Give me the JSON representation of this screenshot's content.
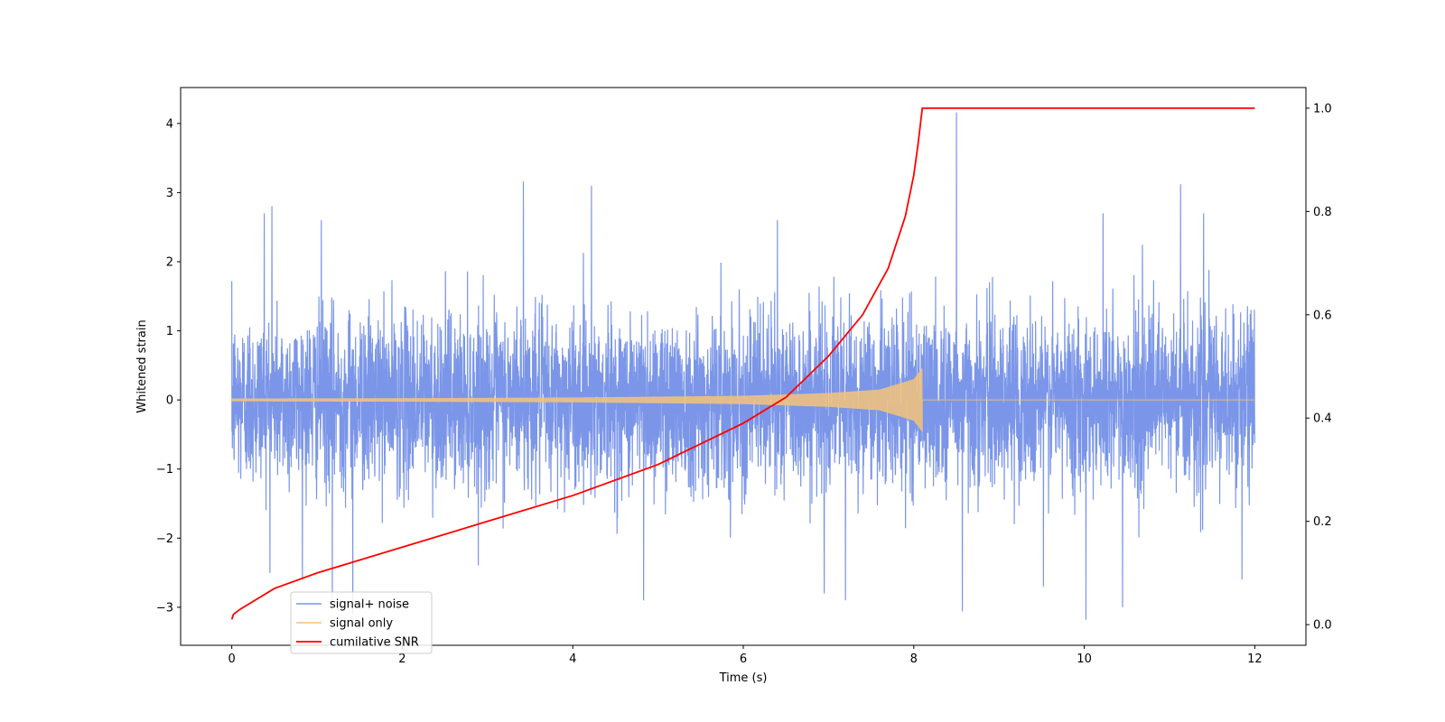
{
  "chart_data": {
    "type": "line",
    "title": "",
    "xlabel": "Time (s)",
    "ylabel": "Whitened strain",
    "y2label": "",
    "xlim": [
      -0.6,
      12.6
    ],
    "ylim": [
      -3.55,
      4.52
    ],
    "y2lim": [
      -0.04,
      1.04
    ],
    "x_ticks": [
      0,
      2,
      4,
      6,
      8,
      10,
      12
    ],
    "y_ticks": [
      -3,
      -2,
      -1,
      0,
      1,
      2,
      3,
      4
    ],
    "y2_ticks": [
      0.0,
      0.2,
      0.4,
      0.6,
      0.8,
      1.0
    ],
    "x_tick_labels": [
      "0",
      "2",
      "4",
      "6",
      "8",
      "10",
      "12"
    ],
    "y_tick_labels": [
      "−3",
      "−2",
      "−1",
      "0",
      "1",
      "2",
      "3",
      "4"
    ],
    "y2_tick_labels": [
      "0.0",
      "0.2",
      "0.4",
      "0.6",
      "0.8",
      "1.0"
    ],
    "grid": false,
    "legend": "lower-left",
    "series": [
      {
        "name": "signal+ noise",
        "axis": "left",
        "color": "#7b96e8",
        "kind": "noise-trace",
        "t_range": [
          0,
          12
        ],
        "typical_envelope": [
          -1.5,
          1.6
        ],
        "peaks": [
          {
            "x": 0.38,
            "y": 2.7
          },
          {
            "x": 0.47,
            "y": 2.8
          },
          {
            "x": 1.05,
            "y": 2.6
          },
          {
            "x": 1.18,
            "y": -2.9
          },
          {
            "x": 1.42,
            "y": -3.1
          },
          {
            "x": 3.42,
            "y": 3.16
          },
          {
            "x": 4.22,
            "y": 3.1
          },
          {
            "x": 4.83,
            "y": -2.9
          },
          {
            "x": 6.4,
            "y": 2.6
          },
          {
            "x": 6.95,
            "y": -2.8
          },
          {
            "x": 7.2,
            "y": -2.9
          },
          {
            "x": 8.5,
            "y": 4.16
          },
          {
            "x": 8.57,
            "y": -3.06
          },
          {
            "x": 9.52,
            "y": -2.7
          },
          {
            "x": 10.22,
            "y": 2.7
          },
          {
            "x": 10.02,
            "y": -3.18
          },
          {
            "x": 10.45,
            "y": -3.0
          },
          {
            "x": 11.13,
            "y": 3.12
          },
          {
            "x": 11.4,
            "y": 2.7
          },
          {
            "x": 11.85,
            "y": -2.6
          }
        ]
      },
      {
        "name": "signal only",
        "axis": "left",
        "color": "#f5c47a",
        "kind": "chirp",
        "t_start": 0,
        "t_merge": 8.1,
        "t_end": 12,
        "amplitude_points": [
          {
            "x": 0,
            "y": 0.02
          },
          {
            "x": 2,
            "y": 0.025
          },
          {
            "x": 4,
            "y": 0.035
          },
          {
            "x": 6,
            "y": 0.06
          },
          {
            "x": 7,
            "y": 0.1
          },
          {
            "x": 7.6,
            "y": 0.15
          },
          {
            "x": 8.0,
            "y": 0.3
          },
          {
            "x": 8.1,
            "y": 0.46
          }
        ]
      },
      {
        "name": "cumilative SNR",
        "axis": "right",
        "color": "#ff0000",
        "kind": "line",
        "x": [
          0,
          0.02,
          0.1,
          0.5,
          1,
          2,
          3,
          4,
          5,
          6,
          6.5,
          7,
          7.4,
          7.7,
          7.9,
          8.0,
          8.05,
          8.1,
          12
        ],
        "y": [
          0.01,
          0.02,
          0.03,
          0.07,
          0.1,
          0.15,
          0.2,
          0.25,
          0.31,
          0.39,
          0.44,
          0.52,
          0.6,
          0.69,
          0.79,
          0.87,
          0.93,
          1.0,
          1.0
        ]
      }
    ]
  }
}
